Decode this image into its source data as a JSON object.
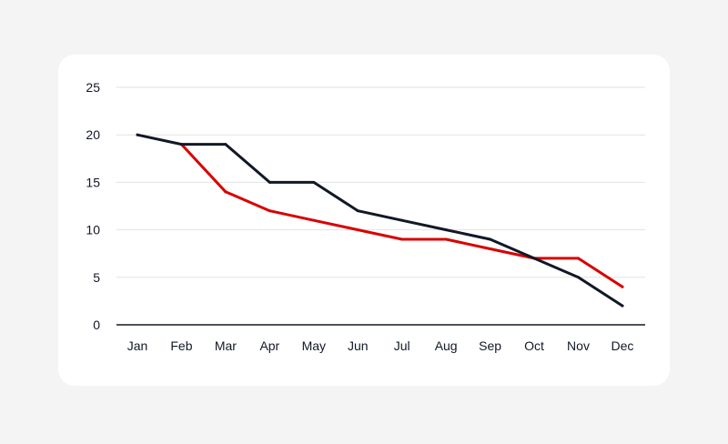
{
  "colors": {
    "page_background": "#f4f4f4",
    "card_background": "#ffffff",
    "grid": "#e2e2e2",
    "axis": "#111827",
    "text": "#111827"
  },
  "chart_data": {
    "type": "line",
    "categories": [
      "Jan",
      "Feb",
      "Mar",
      "Apr",
      "May",
      "Jun",
      "Jul",
      "Aug",
      "Sep",
      "Oct",
      "Nov",
      "Dec"
    ],
    "ylim": [
      0,
      25
    ],
    "yticks": [
      0,
      5,
      10,
      15,
      20,
      25
    ],
    "grid": true,
    "legend": "none",
    "series": [
      {
        "color": "#d90000",
        "values": [
          null,
          19,
          14,
          12,
          11,
          10,
          9,
          9,
          8,
          7,
          7,
          4
        ]
      },
      {
        "color": "#111827",
        "values": [
          20,
          19,
          19,
          15,
          15,
          12,
          11,
          10,
          9,
          7,
          5,
          2
        ]
      }
    ]
  }
}
